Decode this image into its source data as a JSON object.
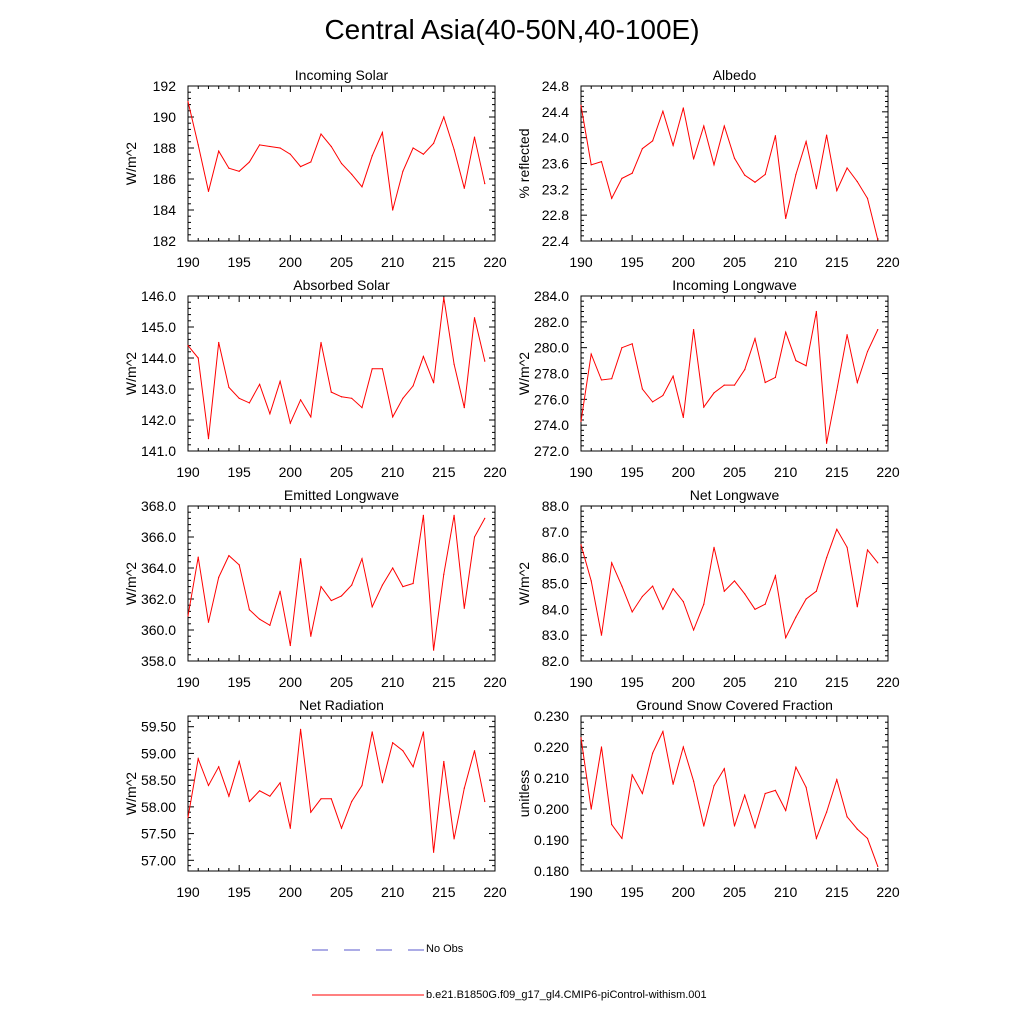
{
  "title": "Central Asia(40-50N,40-100E)",
  "colors": {
    "model": "#ff0000",
    "obs": "#5a5acd",
    "axis": "#000000"
  },
  "legend": {
    "obs_label": "No Obs",
    "model_label": "b.e21.B1850G.f09_g17_gl4.CMIP6-piControl-withism.001"
  },
  "chart_data": [
    {
      "type": "line",
      "title": "Incoming Solar",
      "ylabel": "W/m^2",
      "xlim": [
        190,
        220
      ],
      "xticks": [
        "190",
        "195",
        "200",
        "205",
        "210",
        "215",
        "220"
      ],
      "ylim": [
        182,
        192
      ],
      "yticks": [
        "182",
        "184",
        "186",
        "188",
        "190",
        "192"
      ],
      "x": [
        190,
        191,
        192,
        193,
        194,
        195,
        196,
        197,
        198,
        199,
        200,
        201,
        202,
        203,
        204,
        205,
        206,
        207,
        208,
        209,
        210,
        211,
        212,
        213,
        214,
        215,
        216,
        217,
        218,
        219
      ],
      "values": [
        191.0,
        188.2,
        185.2,
        187.8,
        186.7,
        186.5,
        187.1,
        188.2,
        188.1,
        188.0,
        187.6,
        186.8,
        187.1,
        188.9,
        188.1,
        187.0,
        186.3,
        185.5,
        187.5,
        189.0,
        184.0,
        186.5,
        188.0,
        187.6,
        188.3,
        190.0,
        187.9,
        185.4,
        188.7,
        185.7
      ]
    },
    {
      "type": "line",
      "title": "Albedo",
      "ylabel": "% reflected",
      "xlim": [
        190,
        220
      ],
      "xticks": [
        "190",
        "195",
        "200",
        "205",
        "210",
        "215",
        "220"
      ],
      "ylim": [
        22.4,
        24.8
      ],
      "yticks": [
        "22.4",
        "22.8",
        "23.2",
        "23.6",
        "24.0",
        "24.4",
        "24.8"
      ],
      "x": [
        190,
        191,
        192,
        193,
        194,
        195,
        196,
        197,
        198,
        199,
        200,
        201,
        202,
        203,
        204,
        205,
        206,
        207,
        208,
        209,
        210,
        211,
        212,
        213,
        214,
        215,
        216,
        217,
        218,
        219
      ],
      "values": [
        24.5,
        23.58,
        23.63,
        23.06,
        23.37,
        23.45,
        23.83,
        23.95,
        24.41,
        23.88,
        24.46,
        23.67,
        24.18,
        23.58,
        24.18,
        23.68,
        23.42,
        23.31,
        23.43,
        24.03,
        22.75,
        23.43,
        23.94,
        23.21,
        24.04,
        23.18,
        23.53,
        23.32,
        23.06,
        22.42
      ]
    },
    {
      "type": "line",
      "title": "Absorbed Solar",
      "ylabel": "W/m^2",
      "xlim": [
        190,
        220
      ],
      "xticks": [
        "190",
        "195",
        "200",
        "205",
        "210",
        "215",
        "220"
      ],
      "ylim": [
        141,
        146
      ],
      "yticks": [
        "141.0",
        "142.0",
        "143.0",
        "144.0",
        "145.0",
        "146.0"
      ],
      "x": [
        190,
        191,
        192,
        193,
        194,
        195,
        196,
        197,
        198,
        199,
        200,
        201,
        202,
        203,
        204,
        205,
        206,
        207,
        208,
        209,
        210,
        211,
        212,
        213,
        214,
        215,
        216,
        217,
        218,
        219
      ],
      "values": [
        144.4,
        144.0,
        141.4,
        144.5,
        143.05,
        142.7,
        142.55,
        143.15,
        142.2,
        143.25,
        141.9,
        142.65,
        142.1,
        144.5,
        142.9,
        142.75,
        142.7,
        142.4,
        143.65,
        143.65,
        142.1,
        142.7,
        143.1,
        144.05,
        143.2,
        145.95,
        143.8,
        142.4,
        145.3,
        143.9
      ]
    },
    {
      "type": "line",
      "title": "Incoming Longwave",
      "ylabel": "W/m^2",
      "xlim": [
        190,
        220
      ],
      "xticks": [
        "190",
        "195",
        "200",
        "205",
        "210",
        "215",
        "220"
      ],
      "ylim": [
        272,
        284
      ],
      "yticks": [
        "272.0",
        "274.0",
        "276.0",
        "278.0",
        "280.0",
        "282.0",
        "284.0"
      ],
      "x": [
        190,
        191,
        192,
        193,
        194,
        195,
        196,
        197,
        198,
        199,
        200,
        201,
        202,
        203,
        204,
        205,
        206,
        207,
        208,
        209,
        210,
        211,
        212,
        213,
        214,
        215,
        216,
        217,
        218,
        219
      ],
      "values": [
        274.3,
        279.5,
        277.5,
        277.6,
        280.0,
        280.3,
        276.8,
        275.8,
        276.3,
        277.8,
        274.6,
        281.4,
        275.4,
        276.5,
        277.1,
        277.1,
        278.3,
        280.7,
        277.3,
        277.7,
        281.2,
        279.0,
        278.6,
        282.8,
        272.6,
        276.7,
        281.0,
        277.3,
        279.7,
        281.4
      ]
    },
    {
      "type": "line",
      "title": "Emitted Longwave",
      "ylabel": "W/m^2",
      "xlim": [
        190,
        220
      ],
      "xticks": [
        "190",
        "195",
        "200",
        "205",
        "210",
        "215",
        "220"
      ],
      "ylim": [
        358,
        368
      ],
      "yticks": [
        "358.0",
        "360.0",
        "362.0",
        "364.0",
        "366.0",
        "368.0"
      ],
      "x": [
        190,
        191,
        192,
        193,
        194,
        195,
        196,
        197,
        198,
        199,
        200,
        201,
        202,
        203,
        204,
        205,
        206,
        207,
        208,
        209,
        210,
        211,
        212,
        213,
        214,
        215,
        216,
        217,
        218,
        219
      ],
      "values": [
        360.9,
        364.7,
        360.5,
        363.4,
        364.8,
        364.2,
        361.3,
        360.7,
        360.3,
        362.5,
        359.0,
        364.6,
        359.6,
        362.8,
        361.9,
        362.2,
        362.9,
        364.6,
        361.5,
        362.9,
        364.0,
        362.8,
        363.0,
        367.4,
        358.7,
        363.6,
        367.4,
        361.4,
        366.0,
        367.2
      ]
    },
    {
      "type": "line",
      "title": "Net Longwave",
      "ylabel": "W/m^2",
      "xlim": [
        190,
        220
      ],
      "xticks": [
        "190",
        "195",
        "200",
        "205",
        "210",
        "215",
        "220"
      ],
      "ylim": [
        82,
        88
      ],
      "yticks": [
        "82.0",
        "83.0",
        "84.0",
        "85.0",
        "86.0",
        "87.0",
        "88.0"
      ],
      "x": [
        190,
        191,
        192,
        193,
        194,
        195,
        196,
        197,
        198,
        199,
        200,
        201,
        202,
        203,
        204,
        205,
        206,
        207,
        208,
        209,
        210,
        211,
        212,
        213,
        214,
        215,
        216,
        217,
        218,
        219
      ],
      "values": [
        86.5,
        85.1,
        83.0,
        85.8,
        84.9,
        83.9,
        84.5,
        84.9,
        84.0,
        84.8,
        84.3,
        83.2,
        84.2,
        86.4,
        84.7,
        85.1,
        84.6,
        84.0,
        84.2,
        85.3,
        82.9,
        83.7,
        84.4,
        84.7,
        86.0,
        87.1,
        86.4,
        84.1,
        86.3,
        85.8
      ]
    },
    {
      "type": "line",
      "title": "Net Radiation",
      "ylabel": "W/m^2",
      "xlim": [
        190,
        220
      ],
      "xticks": [
        "190",
        "195",
        "200",
        "205",
        "210",
        "215",
        "220"
      ],
      "ylim": [
        56.8,
        59.7
      ],
      "yticks": [
        "57.00",
        "57.50",
        "58.00",
        "58.50",
        "59.00",
        "59.50"
      ],
      "x": [
        190,
        191,
        192,
        193,
        194,
        195,
        196,
        197,
        198,
        199,
        200,
        201,
        202,
        203,
        204,
        205,
        206,
        207,
        208,
        209,
        210,
        211,
        212,
        213,
        214,
        215,
        216,
        217,
        218,
        219
      ],
      "values": [
        57.8,
        58.9,
        58.4,
        58.75,
        58.2,
        58.85,
        58.1,
        58.3,
        58.2,
        58.45,
        57.6,
        59.45,
        57.9,
        58.15,
        58.15,
        57.6,
        58.1,
        58.4,
        59.4,
        58.45,
        59.2,
        59.05,
        58.75,
        59.4,
        57.15,
        58.85,
        57.4,
        58.35,
        59.05,
        58.1
      ]
    },
    {
      "type": "line",
      "title": "Ground Snow Covered Fraction",
      "ylabel": "unitless",
      "xlim": [
        190,
        220
      ],
      "xticks": [
        "190",
        "195",
        "200",
        "205",
        "210",
        "215",
        "220"
      ],
      "ylim": [
        0.18,
        0.23
      ],
      "yticks": [
        "0.180",
        "0.190",
        "0.200",
        "0.210",
        "0.220",
        "0.230"
      ],
      "x": [
        190,
        191,
        192,
        193,
        194,
        195,
        196,
        197,
        198,
        199,
        200,
        201,
        202,
        203,
        204,
        205,
        206,
        207,
        208,
        209,
        210,
        211,
        212,
        213,
        214,
        215,
        216,
        217,
        218,
        219
      ],
      "values": [
        0.223,
        0.2,
        0.22,
        0.195,
        0.1905,
        0.211,
        0.205,
        0.218,
        0.225,
        0.208,
        0.22,
        0.209,
        0.1945,
        0.2075,
        0.213,
        0.1945,
        0.2045,
        0.194,
        0.205,
        0.206,
        0.1995,
        0.2135,
        0.207,
        0.1905,
        0.199,
        0.2095,
        0.1975,
        0.1935,
        0.1905,
        0.1815
      ]
    }
  ]
}
